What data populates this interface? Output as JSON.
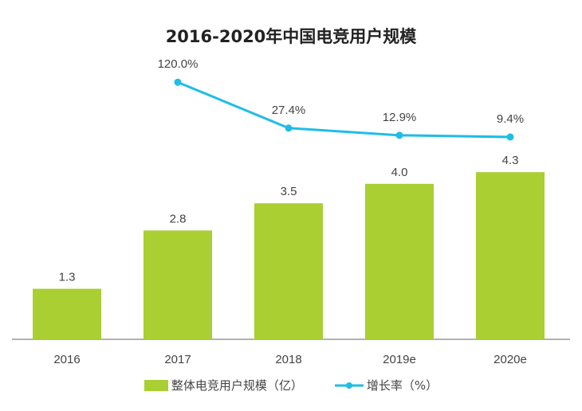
{
  "chart_data": {
    "type": "bar+line",
    "title": "2016-2020年中国电竞用户规模",
    "categories": [
      "2016",
      "2017",
      "2018",
      "2019e",
      "2020e"
    ],
    "series": [
      {
        "name": "整体电竞用户规模（亿）",
        "type": "bar",
        "color": "#a9cf32",
        "values": [
          1.3,
          2.8,
          3.5,
          4.0,
          4.3
        ],
        "labels": [
          "1.3",
          "2.8",
          "3.5",
          "4.0",
          "4.3"
        ]
      },
      {
        "name": "增长率（%）",
        "type": "line",
        "color": "#1fbde6",
        "values": [
          null,
          120.0,
          27.4,
          12.9,
          9.4
        ],
        "labels": [
          "",
          "120.0%",
          "27.4%",
          "12.9%",
          "9.4%"
        ]
      }
    ],
    "grid": false,
    "legend": "bottom"
  }
}
